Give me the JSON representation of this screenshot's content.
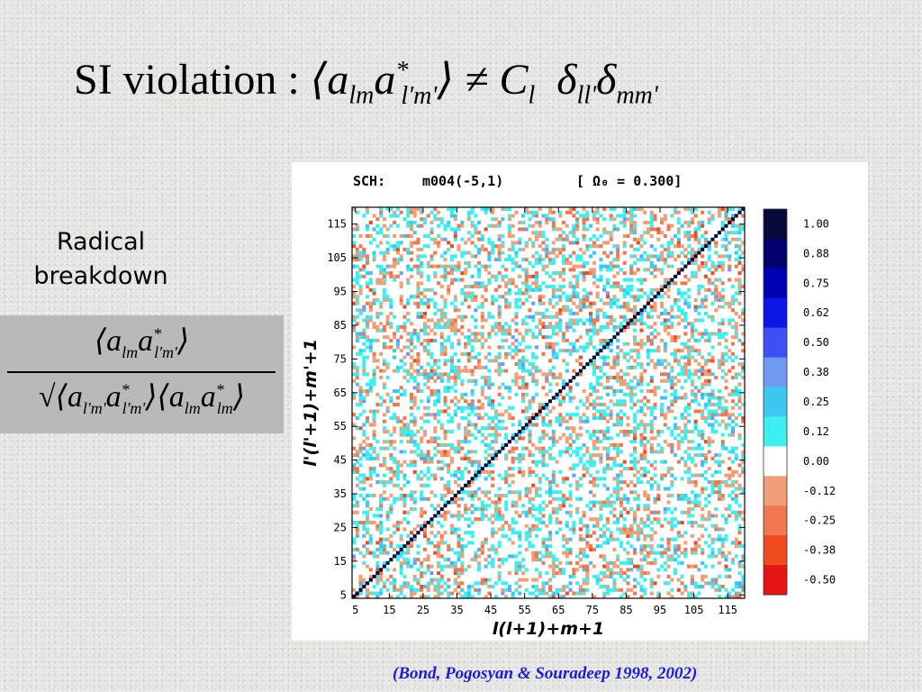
{
  "slide": {
    "title_prefix": "SI violation :",
    "title_formula": "⟨a_lm a*_l'm'⟩ ≠ C_l δ_ll' δ_mm'",
    "label_line1": "Radical",
    "label_line2": "breakdown",
    "formula_numerator": "⟨a_lm a*_l'm'⟩",
    "formula_denominator": "√(⟨a_l'm' a*_l'm'⟩⟨a_lm a*_lm⟩)",
    "citation": "(Bond, Pogosyan & Souradeep 1998, 2002)"
  },
  "figure": {
    "header_left": "SCH:",
    "header_model": "m004(-5,1)",
    "header_omega": "[ Ω₀ = 0.300]",
    "xlabel": "l(l+1)+m+1",
    "ylabel": "l'(l'+1)+m'+1",
    "ticks": [
      "5",
      "15",
      "25",
      "35",
      "45",
      "55",
      "65",
      "75",
      "85",
      "95",
      "105",
      "115"
    ],
    "tick_values": [
      5,
      15,
      25,
      35,
      45,
      55,
      65,
      75,
      85,
      95,
      105,
      115
    ],
    "axis_range": [
      4,
      120
    ],
    "colorbar": [
      {
        "label": "1.00",
        "color": "#0a0a3a"
      },
      {
        "label": "0.88",
        "color": "#00006e"
      },
      {
        "label": "0.75",
        "color": "#0000b4"
      },
      {
        "label": "0.62",
        "color": "#0c16e6"
      },
      {
        "label": "0.50",
        "color": "#3c50f5"
      },
      {
        "label": "0.38",
        "color": "#6e9bf0"
      },
      {
        "label": "0.25",
        "color": "#3cc8f0"
      },
      {
        "label": "0.12",
        "color": "#3cf0f0"
      },
      {
        "label": "0.00",
        "color": "#ffffff"
      },
      {
        "label": "-0.12",
        "color": "#f0a078"
      },
      {
        "label": "-0.25",
        "color": "#f07850"
      },
      {
        "label": "-0.38",
        "color": "#f04b1e"
      },
      {
        "label": "-0.50",
        "color": "#e61414"
      }
    ]
  }
}
